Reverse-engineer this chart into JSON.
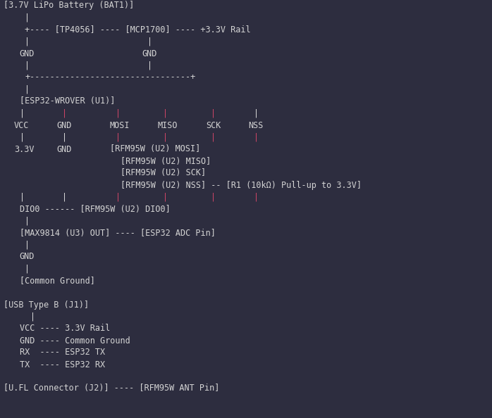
{
  "background_color": "#2d2d3f",
  "text_color": "#d4d4d4",
  "pink_color": "#cc4466",
  "font_family": "monospace",
  "font_size": 8.5,
  "figwidth": 6.98,
  "figheight": 5.94,
  "dpi": 100,
  "lines": [
    {
      "text": "[3.7V LiPo Battery (BAT1)]",
      "col": 0,
      "row": 0,
      "color": "#d4d4d4"
    },
    {
      "text": "|",
      "col": 4,
      "row": 1,
      "color": "#d4d4d4"
    },
    {
      "text": "+---- [TP4056] ---- [MCP1700] ---- +3.3V Rail",
      "col": 4,
      "row": 2,
      "color": "#d4d4d4"
    },
    {
      "text": "|",
      "col": 4,
      "row": 3,
      "color": "#d4d4d4"
    },
    {
      "text": "|",
      "col": 27,
      "row": 3,
      "color": "#d4d4d4"
    },
    {
      "text": "GND",
      "col": 3,
      "row": 4,
      "color": "#d4d4d4"
    },
    {
      "text": "GND",
      "col": 26,
      "row": 4,
      "color": "#d4d4d4"
    },
    {
      "text": "|",
      "col": 4,
      "row": 5,
      "color": "#d4d4d4"
    },
    {
      "text": "|",
      "col": 27,
      "row": 5,
      "color": "#d4d4d4"
    },
    {
      "text": "+--------------------------------+",
      "col": 4,
      "row": 6,
      "color": "#d4d4d4"
    },
    {
      "text": "|",
      "col": 4,
      "row": 7,
      "color": "#d4d4d4"
    },
    {
      "text": "[ESP32-WROVER (U1)]",
      "col": 3,
      "row": 8,
      "color": "#d4d4d4"
    },
    {
      "text": "|",
      "col": 3,
      "row": 9,
      "color": "#d4d4d4"
    },
    {
      "text": "|",
      "col": 11,
      "row": 9,
      "color": "#cc4466"
    },
    {
      "text": "|",
      "col": 21,
      "row": 9,
      "color": "#cc4466"
    },
    {
      "text": "|",
      "col": 30,
      "row": 9,
      "color": "#cc4466"
    },
    {
      "text": "|",
      "col": 39,
      "row": 9,
      "color": "#cc4466"
    },
    {
      "text": "|",
      "col": 47,
      "row": 9,
      "color": "#d4d4d4"
    },
    {
      "text": "VCC",
      "col": 2,
      "row": 10,
      "color": "#d4d4d4"
    },
    {
      "text": "GND",
      "col": 10,
      "row": 10,
      "color": "#d4d4d4"
    },
    {
      "text": "MOSI",
      "col": 20,
      "row": 10,
      "color": "#d4d4d4"
    },
    {
      "text": "MISO",
      "col": 29,
      "row": 10,
      "color": "#d4d4d4"
    },
    {
      "text": "SCK",
      "col": 38,
      "row": 10,
      "color": "#d4d4d4"
    },
    {
      "text": "NSS",
      "col": 46,
      "row": 10,
      "color": "#d4d4d4"
    },
    {
      "text": "|",
      "col": 3,
      "row": 11,
      "color": "#d4d4d4"
    },
    {
      "text": "|",
      "col": 11,
      "row": 11,
      "color": "#d4d4d4"
    },
    {
      "text": "|",
      "col": 21,
      "row": 11,
      "color": "#cc4466"
    },
    {
      "text": "|",
      "col": 30,
      "row": 11,
      "color": "#cc4466"
    },
    {
      "text": "|",
      "col": 39,
      "row": 11,
      "color": "#cc4466"
    },
    {
      "text": "|",
      "col": 47,
      "row": 11,
      "color": "#cc4466"
    },
    {
      "text": "3.3V",
      "col": 2,
      "row": 12,
      "color": "#d4d4d4"
    },
    {
      "text": "GND",
      "col": 10,
      "row": 12,
      "color": "#d4d4d4"
    },
    {
      "text": "[RFM95W (U2) MOSI]",
      "col": 20,
      "row": 12,
      "color": "#d4d4d4"
    },
    {
      "text": "[RFM95W (U2) MISO]",
      "col": 22,
      "row": 13,
      "color": "#d4d4d4"
    },
    {
      "text": "[RFM95W (U2) SCK]",
      "col": 22,
      "row": 14,
      "color": "#d4d4d4"
    },
    {
      "text": "[RFM95W (U2) NSS] -- [R1 (10kΩ) Pull-up to 3.3V]",
      "col": 22,
      "row": 15,
      "color": "#d4d4d4"
    },
    {
      "text": "|",
      "col": 3,
      "row": 16,
      "color": "#d4d4d4"
    },
    {
      "text": "|",
      "col": 11,
      "row": 16,
      "color": "#d4d4d4"
    },
    {
      "text": "|",
      "col": 21,
      "row": 16,
      "color": "#cc4466"
    },
    {
      "text": "|",
      "col": 30,
      "row": 16,
      "color": "#cc4466"
    },
    {
      "text": "|",
      "col": 39,
      "row": 16,
      "color": "#cc4466"
    },
    {
      "text": "|",
      "col": 47,
      "row": 16,
      "color": "#cc4466"
    },
    {
      "text": "DIO0 ------ [RFM95W (U2) DIO0]",
      "col": 3,
      "row": 17,
      "color": "#d4d4d4"
    },
    {
      "text": "|",
      "col": 4,
      "row": 18,
      "color": "#d4d4d4"
    },
    {
      "text": "[MAX9814 (U3) OUT] ---- [ESP32 ADC Pin]",
      "col": 3,
      "row": 19,
      "color": "#d4d4d4"
    },
    {
      "text": "|",
      "col": 4,
      "row": 20,
      "color": "#d4d4d4"
    },
    {
      "text": "GND",
      "col": 3,
      "row": 21,
      "color": "#d4d4d4"
    },
    {
      "text": "|",
      "col": 4,
      "row": 22,
      "color": "#d4d4d4"
    },
    {
      "text": "[Common Ground]",
      "col": 3,
      "row": 23,
      "color": "#d4d4d4"
    },
    {
      "text": "",
      "col": 0,
      "row": 24,
      "color": "#d4d4d4"
    },
    {
      "text": "[USB Type B (J1)]",
      "col": 0,
      "row": 25,
      "color": "#d4d4d4"
    },
    {
      "text": "|",
      "col": 5,
      "row": 26,
      "color": "#d4d4d4"
    },
    {
      "text": "VCC ---- 3.3V Rail",
      "col": 3,
      "row": 27,
      "color": "#d4d4d4"
    },
    {
      "text": "GND ---- Common Ground",
      "col": 3,
      "row": 28,
      "color": "#d4d4d4"
    },
    {
      "text": "RX  ---- ESP32 TX",
      "col": 3,
      "row": 29,
      "color": "#d4d4d4"
    },
    {
      "text": "TX  ---- ESP32 RX",
      "col": 3,
      "row": 30,
      "color": "#d4d4d4"
    },
    {
      "text": "",
      "col": 0,
      "row": 31,
      "color": "#d4d4d4"
    },
    {
      "text": "[U.FL Connector (J2)] ---- [RFM95W ANT Pin]",
      "col": 0,
      "row": 32,
      "color": "#d4d4d4"
    }
  ]
}
